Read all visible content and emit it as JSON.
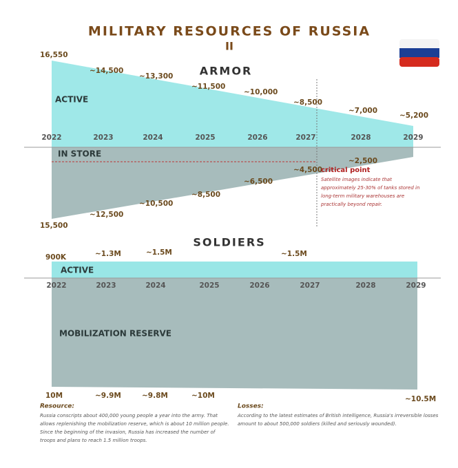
{
  "title": "MILITARY RESOURCES OF RUSSIA",
  "subtitle": "II",
  "armor": {
    "heading": "ARMOR",
    "active_label": "ACTIVE",
    "store_label": "IN STORE",
    "years": [
      "2022",
      "2023",
      "2024",
      "2025",
      "2026",
      "2027",
      "2028",
      "2029"
    ],
    "active_values": [
      "16,550",
      "~14,500",
      "~13,300",
      "~11,500",
      "~10,000",
      "~8,500",
      "~7,000",
      "~5,200"
    ],
    "store_values": [
      "15,500",
      "~12,500",
      "~10,500",
      "~8,500",
      "~6,500",
      "~4,500",
      "~2,500"
    ],
    "critical_title": "critical point",
    "critical_note": [
      "Satellite images indicate that",
      "approximately 25-30% of tanks stored in",
      "long-term military warehouses are",
      "practically beyond repair."
    ]
  },
  "soldiers": {
    "heading": "SOLDIERS",
    "active_label": "ACTIVE",
    "reserve_label": "MOBILIZATION RESERVE",
    "years": [
      "2022",
      "2023",
      "2024",
      "2025",
      "2026",
      "2027",
      "2028",
      "2029"
    ],
    "active_values": [
      "900K",
      "~1.3M",
      "~1.5M",
      "~1.5M"
    ],
    "reserve_values": [
      "10M",
      "~9.9M",
      "~9.8M",
      "~10M",
      "~10.5M"
    ]
  },
  "footer": {
    "resource_title": "Resource:",
    "resource_text": [
      "Russia conscripts about 400,000 young people a year into the army. That",
      "allows replenishing the mobilization reserve, which is about 10 million people.",
      "Since the beginning of the invasion, Russia has increased the number of",
      "troops and plans to reach 1.5 million troops."
    ],
    "losses_title": "Losses:",
    "losses_text": [
      "According to the latest estimates of British intelligence, Russia's irreversible losses",
      "amount to about 500,000 soldiers (killed and seriously wounded)."
    ]
  }
}
